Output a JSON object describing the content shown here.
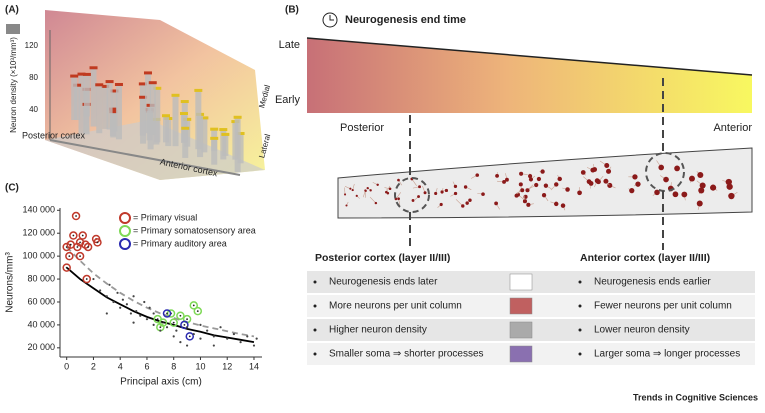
{
  "panel_a": {
    "label": "(A)",
    "y_axis_label": "Neuron density (×10³/mm³)",
    "yticks": [
      40,
      80,
      120
    ],
    "posterior_label": "Posterior cortex",
    "anterior_label": "Anterior cortex",
    "medial_label": "Medial",
    "lateral_label": "Lateral"
  },
  "panel_b": {
    "label": "(B)",
    "title": "Neurogenesis end time",
    "late_label": "Late",
    "early_label": "Early",
    "posterior_label": "Posterior",
    "anterior_label": "Anterior",
    "table": {
      "headers": [
        "Posterior cortex (layer II/III)",
        "Anterior cortex (layer II/III)"
      ],
      "rows": [
        [
          "Neurogenesis ends later",
          "Neurogenesis ends earlier"
        ],
        [
          "More neurons per unit column",
          "Fewer neurons per unit column"
        ],
        [
          "Higher neuron density",
          "Lower neuron density"
        ],
        [
          "Smaller soma ⇒ shorter processes",
          "Larger soma ⇒ longer processes"
        ]
      ]
    }
  },
  "chart_data": {
    "type": "scatter",
    "label": "(C)",
    "x_label": "Principal axis (cm)",
    "y_label": "Neurons/mm³",
    "xlim": [
      -0.5,
      14.6
    ],
    "xticks": [
      0,
      2,
      4,
      6,
      8,
      10,
      12,
      14
    ],
    "ylim": [
      12000,
      142000
    ],
    "yticks": [
      {
        "value": 20000,
        "label": "20 000"
      },
      {
        "value": 40000,
        "label": "40 000"
      },
      {
        "value": 60000,
        "label": "60 000"
      },
      {
        "value": 80000,
        "label": "80 000"
      },
      {
        "value": 100000,
        "label": "100 000"
      },
      {
        "value": 120000,
        "label": "120 000"
      },
      {
        "value": 140000,
        "label": "140 000"
      }
    ],
    "legend": "upper right",
    "series": [
      {
        "name": "= Primary visual",
        "color": "#c0392b",
        "x": [
          0,
          0,
          0.2,
          0.3,
          0.5,
          0.7,
          0.8,
          1,
          1,
          1.2,
          1.4,
          1.5,
          1.6,
          2.2,
          2.3
        ],
        "y": [
          90000,
          108000,
          100000,
          110000,
          118000,
          135000,
          108000,
          112000,
          100000,
          118000,
          110000,
          80000,
          108000,
          115000,
          112000
        ]
      },
      {
        "name": "= Primary somatosensory area",
        "color": "#7ed957",
        "x": [
          6.8,
          7,
          7.2,
          7.8,
          8,
          8.5,
          9,
          9.5,
          9.8
        ],
        "y": [
          45000,
          38000,
          42000,
          50000,
          42000,
          48000,
          45000,
          57000,
          52000
        ]
      },
      {
        "name": "= Primary auditory area",
        "color": "#2a2ab0",
        "x": [
          7.5,
          8.8,
          9.2
        ],
        "y": [
          50000,
          40000,
          30000
        ]
      },
      {
        "color": "#444444",
        "x": [
          2,
          2.5,
          3,
          3.2,
          3.5,
          3.8,
          4,
          4.2,
          4.5,
          4.8,
          5,
          5.2,
          5.5,
          5.8,
          6,
          6.2,
          6.5,
          6.5,
          7,
          7.5,
          8,
          8.2,
          8.5,
          9,
          9.5,
          10,
          10,
          10.5,
          11,
          11,
          11.5,
          12,
          12.5,
          13,
          13.5,
          14,
          14.2,
          3,
          5,
          9
        ],
        "y": [
          80000,
          70000,
          65000,
          75000,
          60000,
          68000,
          55000,
          62000,
          58000,
          50000,
          65000,
          52000,
          48000,
          60000,
          45000,
          55000,
          40000,
          50000,
          35000,
          38000,
          30000,
          35000,
          25000,
          38000,
          32000,
          28000,
          40000,
          35000,
          30000,
          22000,
          38000,
          28000,
          32000,
          25000,
          30000,
          22000,
          28000,
          50000,
          42000,
          22000
        ]
      }
    ],
    "curves": [
      {
        "color": "#999999",
        "dashed": true,
        "x": [
          0,
          1,
          2,
          3,
          4,
          5,
          6,
          7,
          8,
          9,
          10,
          11,
          12,
          13,
          14
        ],
        "y": [
          108000,
          96000,
          85000,
          76000,
          68000,
          61000,
          55000,
          50000,
          46000,
          42500,
          39500,
          37000,
          34500,
          32000,
          30000
        ]
      },
      {
        "color": "#000000",
        "dashed": false,
        "x": [
          0,
          1,
          2,
          3,
          4,
          5,
          6,
          7,
          8,
          9,
          10,
          11,
          12,
          13,
          14
        ],
        "y": [
          90000,
          80000,
          72000,
          64000,
          58000,
          52000,
          47000,
          43000,
          40000,
          36500,
          34000,
          31000,
          29000,
          27000,
          25000
        ]
      }
    ]
  },
  "footer": "Trends in Cognitive Sciences"
}
